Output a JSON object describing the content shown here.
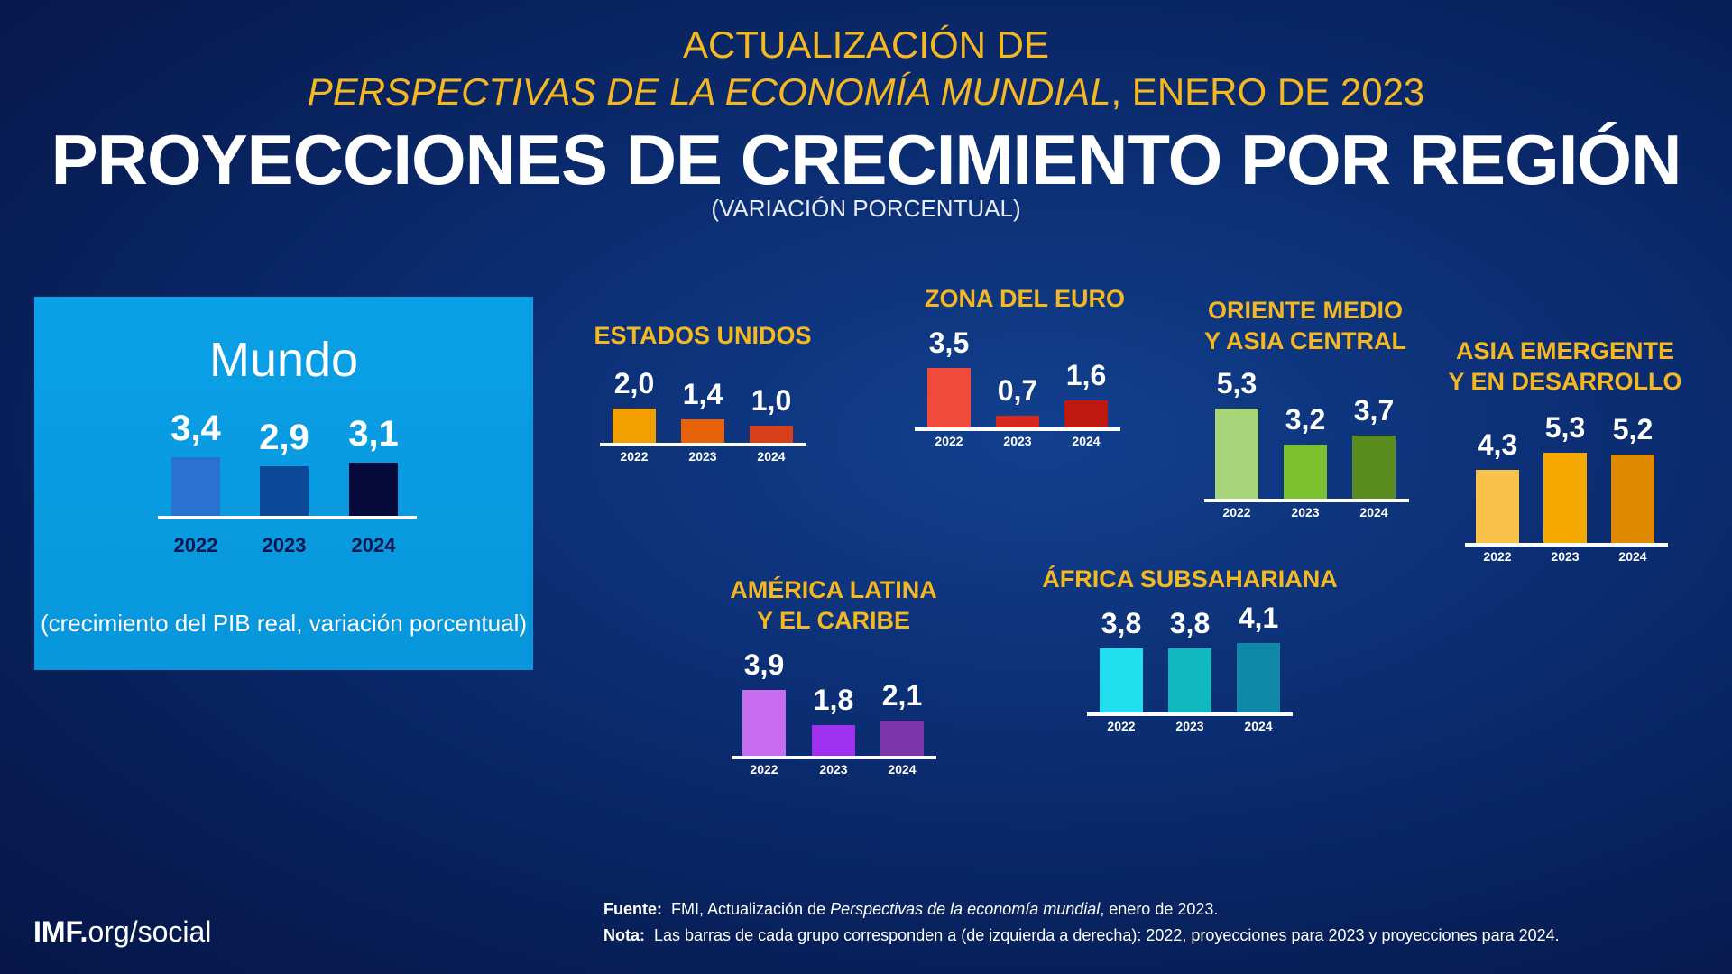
{
  "header": {
    "line1": "ACTUALIZACIÓN DE",
    "line2_italic": "PERSPECTIVAS DE LA ECONOMÍA MUNDIAL",
    "line2_rest": ", ENERO DE 2023",
    "title": "PROYECCIONES DE CRECIMIENTO POR REGIÓN",
    "subtitle": "(VARIACIÓN PORCENTUAL)"
  },
  "world_box": {
    "title": "Mundo",
    "caption": "(crecimiento del PIB real, variación porcentual)"
  },
  "chart_data": [
    {
      "type": "bar",
      "title": "Mundo",
      "categories": [
        "2022",
        "2023",
        "2024"
      ],
      "values": [
        3.4,
        2.9,
        3.1
      ],
      "labels": [
        "3,4",
        "2,9",
        "3,1"
      ],
      "colors": [
        "#2a72d2",
        "#0a4898",
        "#050a3a"
      ]
    },
    {
      "type": "bar",
      "title": "ESTADOS UNIDOS",
      "categories": [
        "2022",
        "2023",
        "2024"
      ],
      "values": [
        2.0,
        1.4,
        1.0
      ],
      "labels": [
        "2,0",
        "1,4",
        "1,0"
      ],
      "colors": [
        "#f2a000",
        "#e8620a",
        "#d9401a"
      ]
    },
    {
      "type": "bar",
      "title": "ZONA DEL EURO",
      "categories": [
        "2022",
        "2023",
        "2024"
      ],
      "values": [
        3.5,
        0.7,
        1.6
      ],
      "labels": [
        "3,5",
        "0,7",
        "1,6"
      ],
      "colors": [
        "#f04a3c",
        "#d9281e",
        "#c01810"
      ]
    },
    {
      "type": "bar",
      "title": "ORIENTE MEDIO\nY ASIA CENTRAL",
      "categories": [
        "2022",
        "2023",
        "2024"
      ],
      "values": [
        5.3,
        3.2,
        3.7
      ],
      "labels": [
        "5,3",
        "3,2",
        "3,7"
      ],
      "colors": [
        "#a8d47a",
        "#7cc230",
        "#5a8c20"
      ]
    },
    {
      "type": "bar",
      "title": "ASIA EMERGENTE\nY EN DESARROLLO",
      "categories": [
        "2022",
        "2023",
        "2024"
      ],
      "values": [
        4.3,
        5.3,
        5.2
      ],
      "labels": [
        "4,3",
        "5,3",
        "5,2"
      ],
      "colors": [
        "#f9c34a",
        "#f5a800",
        "#e08a00"
      ]
    },
    {
      "type": "bar",
      "title": "AMÉRICA LATINA\nY EL CARIBE",
      "categories": [
        "2022",
        "2023",
        "2024"
      ],
      "values": [
        3.9,
        1.8,
        2.1
      ],
      "labels": [
        "3,9",
        "1,8",
        "2,1"
      ],
      "colors": [
        "#c86cf0",
        "#a030f0",
        "#7b35a8"
      ]
    },
    {
      "type": "bar",
      "title": "ÁFRICA SUBSAHARIANA",
      "categories": [
        "2022",
        "2023",
        "2024"
      ],
      "values": [
        3.8,
        3.8,
        4.1
      ],
      "labels": [
        "3,8",
        "3,8",
        "4,1"
      ],
      "colors": [
        "#20e0f0",
        "#10b8c0",
        "#1088a8"
      ]
    }
  ],
  "footer": {
    "source_label": "Fuente:",
    "source_pre": "FMI, Actualización de ",
    "source_italic": "Perspectivas de la economía mundial",
    "source_post": ", enero de 2023.",
    "note_label": "Nota:",
    "note_text": "Las barras de cada grupo corresponden a (de izquierda a derecha): 2022, proyecciones para 2023 y proyecciones para 2024.",
    "brand_bold": "IMF.",
    "brand_rest": "org/social"
  }
}
